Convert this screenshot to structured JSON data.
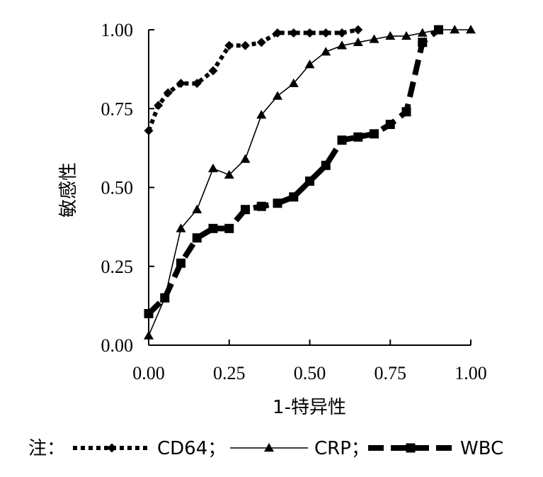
{
  "chart_data": {
    "type": "line",
    "xlabel": "1-特异性",
    "ylabel": "敏感性",
    "xlim": [
      0,
      1
    ],
    "ylim": [
      0,
      1
    ],
    "x_ticks": [
      "0.00",
      "0.25",
      "0.50",
      "0.75",
      "1.00"
    ],
    "y_ticks": [
      "0.00",
      "0.25",
      "0.50",
      "0.75",
      "1.00"
    ],
    "grid": false,
    "legend_prefix": "注：",
    "legend_position": "bottom",
    "series": [
      {
        "name": "CD64；",
        "style": "dotted-diamond",
        "points": [
          [
            0.0,
            0.68
          ],
          [
            0.03,
            0.76
          ],
          [
            0.06,
            0.8
          ],
          [
            0.1,
            0.83
          ],
          [
            0.15,
            0.83
          ],
          [
            0.2,
            0.87
          ],
          [
            0.25,
            0.95
          ],
          [
            0.3,
            0.95
          ],
          [
            0.35,
            0.96
          ],
          [
            0.4,
            0.99
          ],
          [
            0.45,
            0.99
          ],
          [
            0.5,
            0.99
          ],
          [
            0.55,
            0.99
          ],
          [
            0.6,
            0.99
          ],
          [
            0.65,
            1.0
          ]
        ]
      },
      {
        "name": "CRP；",
        "style": "thin-solid-triangle",
        "points": [
          [
            0.0,
            0.03
          ],
          [
            0.05,
            0.15
          ],
          [
            0.1,
            0.37
          ],
          [
            0.15,
            0.43
          ],
          [
            0.2,
            0.56
          ],
          [
            0.25,
            0.54
          ],
          [
            0.3,
            0.59
          ],
          [
            0.35,
            0.73
          ],
          [
            0.4,
            0.79
          ],
          [
            0.45,
            0.83
          ],
          [
            0.5,
            0.89
          ],
          [
            0.55,
            0.93
          ],
          [
            0.6,
            0.95
          ],
          [
            0.65,
            0.96
          ],
          [
            0.7,
            0.97
          ],
          [
            0.75,
            0.98
          ],
          [
            0.8,
            0.98
          ],
          [
            0.85,
            0.99
          ],
          [
            0.9,
            1.0
          ],
          [
            0.95,
            1.0
          ],
          [
            1.0,
            1.0
          ]
        ]
      },
      {
        "name": "WBC",
        "style": "thick-dash-square",
        "points": [
          [
            0.0,
            0.1
          ],
          [
            0.05,
            0.15
          ],
          [
            0.1,
            0.26
          ],
          [
            0.15,
            0.34
          ],
          [
            0.2,
            0.37
          ],
          [
            0.25,
            0.37
          ],
          [
            0.3,
            0.43
          ],
          [
            0.35,
            0.44
          ],
          [
            0.4,
            0.45
          ],
          [
            0.45,
            0.47
          ],
          [
            0.5,
            0.52
          ],
          [
            0.55,
            0.57
          ],
          [
            0.6,
            0.65
          ],
          [
            0.65,
            0.66
          ],
          [
            0.7,
            0.67
          ],
          [
            0.75,
            0.7
          ],
          [
            0.8,
            0.74
          ],
          [
            0.85,
            0.96
          ],
          [
            0.9,
            1.0
          ]
        ]
      }
    ]
  }
}
